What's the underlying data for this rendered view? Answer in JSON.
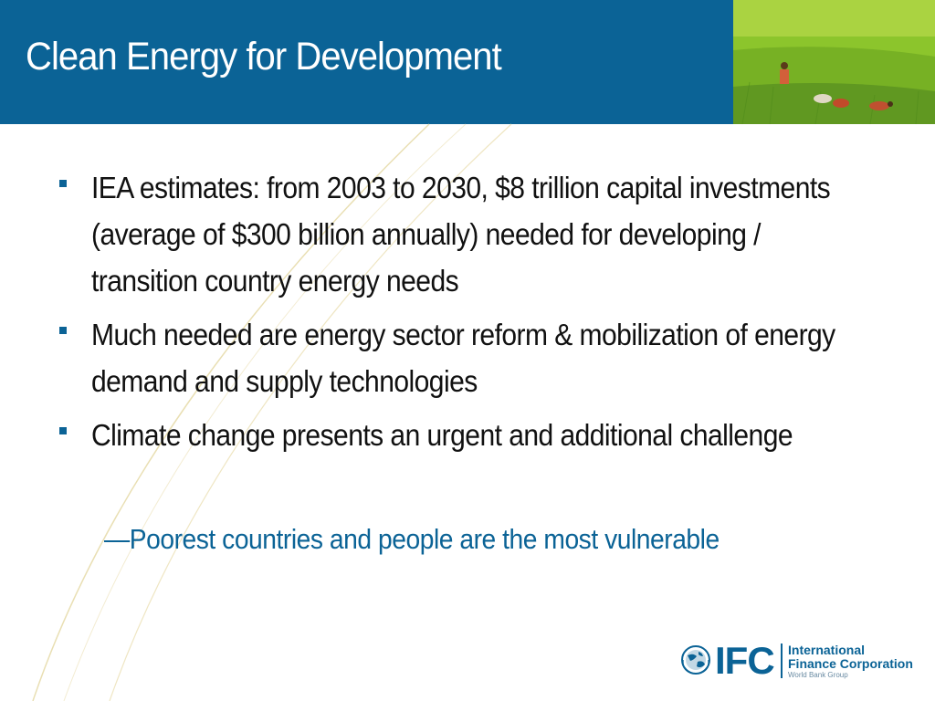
{
  "slide": {
    "title": "Clean Energy for Development"
  },
  "bullets": [
    {
      "text": "IEA estimates:  from 2003 to 2030, $8 trillion capital investments (average of $300 billion annually) needed for developing / transition country energy needs"
    },
    {
      "text": "Much needed are energy sector reform & mobilization of energy demand and supply technologies"
    },
    {
      "text": "Climate change presents an urgent and additional challenge"
    }
  ],
  "sub_bullet": {
    "dash": "—",
    "text": "Poorest countries and people are the most vulnerable"
  },
  "logo": {
    "mark": "IFC",
    "line1": "International",
    "line2": "Finance Corporation",
    "line3": "World Bank Group"
  },
  "colors": {
    "header": "#0b6396",
    "accent": "#0b6396",
    "text": "#111111"
  },
  "icons": {
    "bullet": "square-bullet-icon",
    "globe": "globe-icon"
  }
}
